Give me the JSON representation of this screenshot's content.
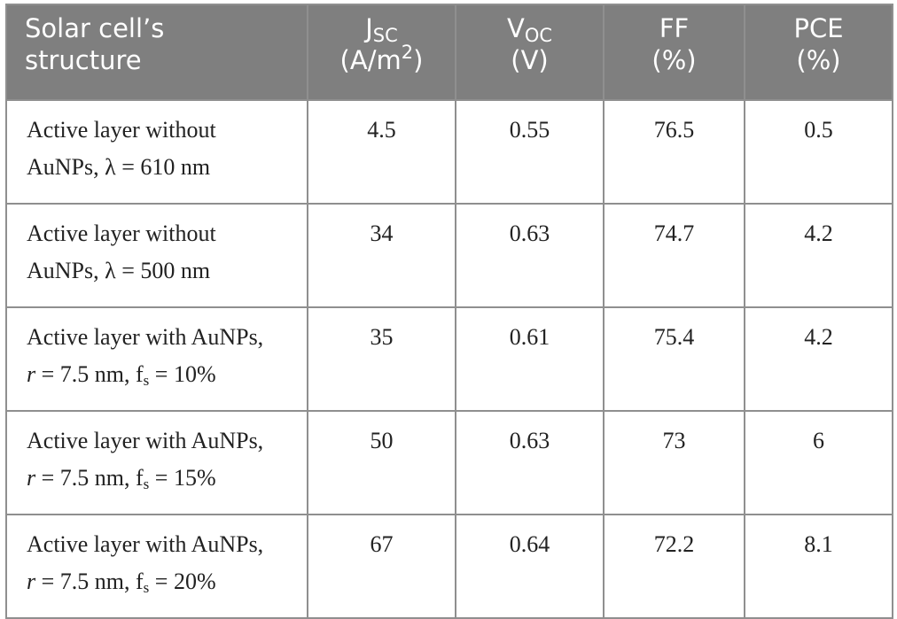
{
  "table": {
    "headers": {
      "structure": [
        "Solar cell’s",
        "structure"
      ],
      "jsc": {
        "main": "J",
        "sub": "SC",
        "unit_open": "(A/m",
        "unit_sup": "2",
        "unit_close": ")"
      },
      "voc": {
        "main": "V",
        "sub": "OC",
        "unit": "(V)"
      },
      "ff": {
        "main": "FF",
        "unit": "(%)"
      },
      "pce": {
        "main": "PCE",
        "unit": "(%)"
      }
    },
    "rows": [
      {
        "line1": "Active layer without",
        "line2": "AuNPs, λ  =  610 nm",
        "jsc": "4.5",
        "voc": "0.55",
        "ff": "76.5",
        "pce": "0.5"
      },
      {
        "line1": "Active layer without",
        "line2": "AuNPs, λ  =  500 nm",
        "jsc": "34",
        "voc": "0.63",
        "ff": "74.7",
        "pce": "4.2"
      },
      {
        "line1": "Active layer with AuNPs,",
        "r_sym": "r",
        "r_text": " = 7.5 nm, f",
        "fs_sub": "s",
        "fs_text": " = 10%",
        "jsc": "35",
        "voc": "0.61",
        "ff": "75.4",
        "pce": "4.2"
      },
      {
        "line1": "Active layer with AuNPs,",
        "r_sym": "r",
        "r_text": " = 7.5 nm, f",
        "fs_sub": "s",
        "fs_text": " = 15%",
        "jsc": "50",
        "voc": "0.63",
        "ff": "73",
        "pce": "6"
      },
      {
        "line1": "Active layer with AuNPs,",
        "r_sym": "r",
        "r_text": " = 7.5 nm, f",
        "fs_sub": "s",
        "fs_text": " = 20%",
        "jsc": "67",
        "voc": "0.64",
        "ff": "72.2",
        "pce": "8.1"
      }
    ]
  }
}
